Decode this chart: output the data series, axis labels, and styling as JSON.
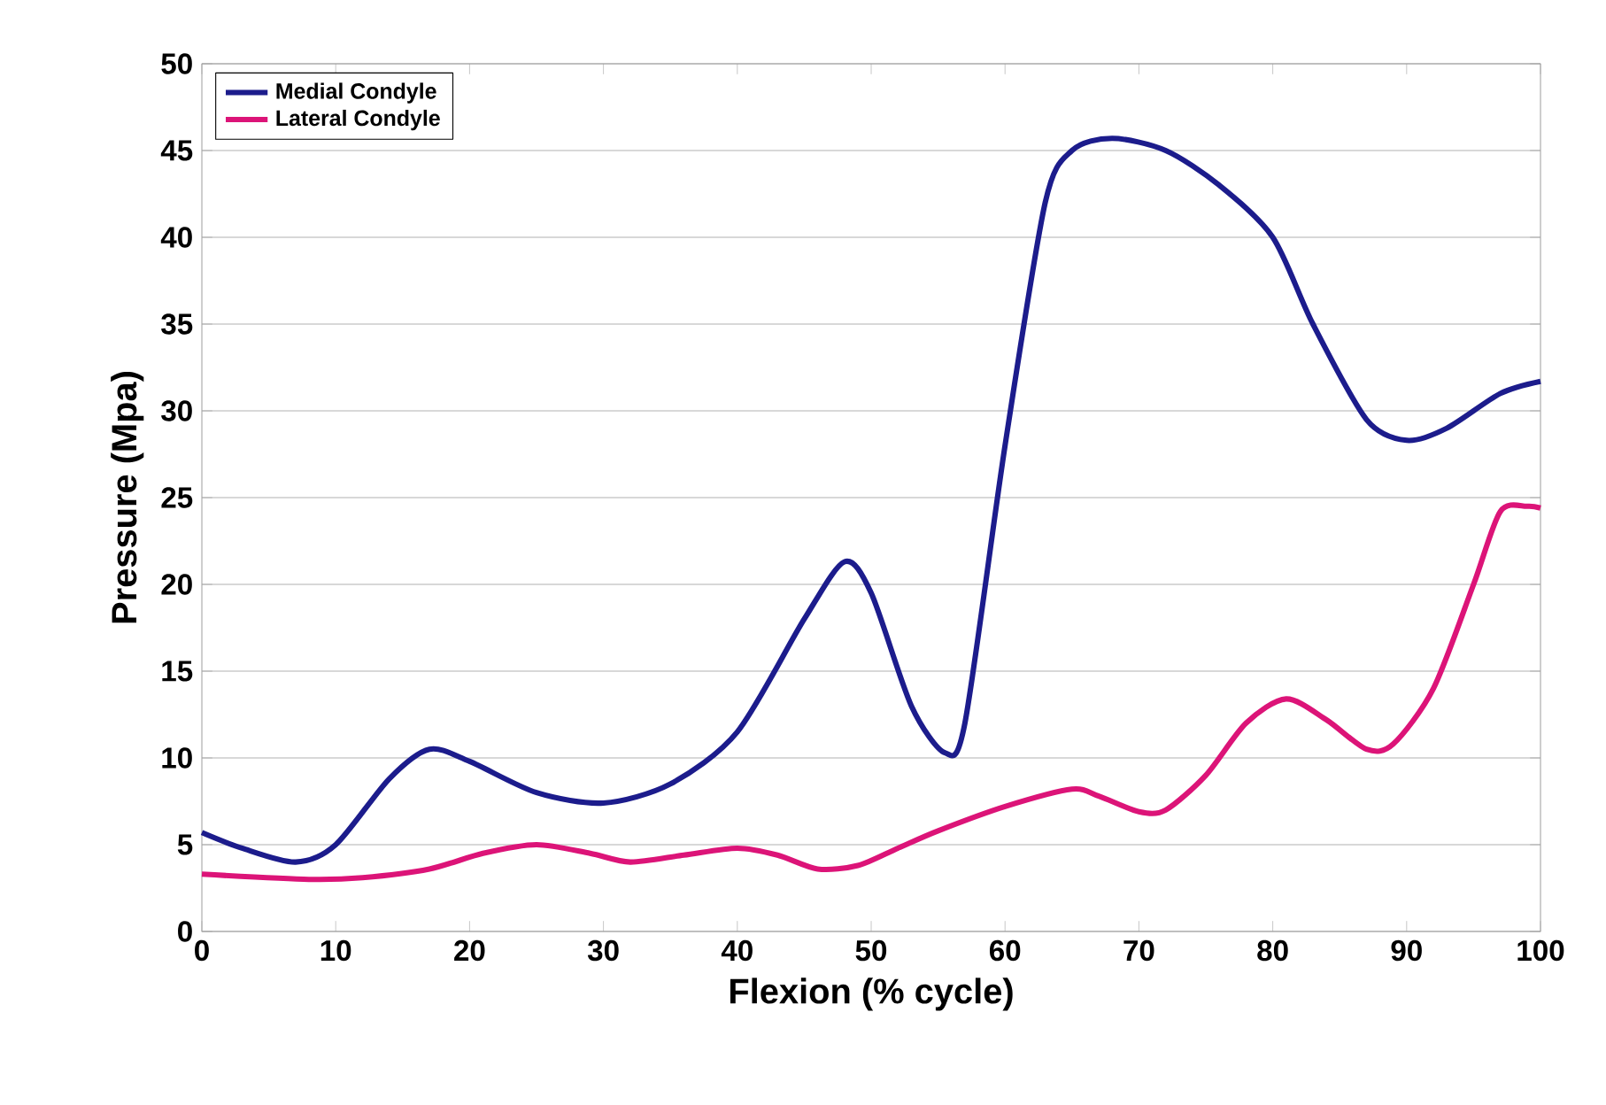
{
  "chart_data": {
    "type": "line",
    "xlabel": "Flexion (% cycle)",
    "ylabel": "Pressure (Mpa)",
    "xlim": [
      0,
      100
    ],
    "xticks": [
      0,
      10,
      20,
      30,
      40,
      50,
      60,
      70,
      80,
      90,
      100
    ],
    "ylim": [
      0,
      50
    ],
    "yticks": [
      0,
      5,
      10,
      15,
      20,
      25,
      30,
      35,
      40,
      45,
      50
    ],
    "grid": "y",
    "legend": "top left",
    "marker": "none",
    "line_style": "solid",
    "series": [
      {
        "name": "Medial Condyle",
        "color": "#1c1c8c",
        "x": [
          0,
          3,
          7,
          10,
          14,
          17,
          20,
          25,
          30,
          35,
          40,
          45,
          48,
          50,
          53,
          55.5,
          57,
          60,
          63,
          65,
          68,
          72,
          76,
          80,
          83,
          87,
          90,
          93,
          97,
          100
        ],
        "values": [
          5.7,
          4.8,
          4.0,
          5.0,
          8.8,
          10.5,
          9.8,
          8.0,
          7.4,
          8.5,
          11.5,
          18.0,
          21.3,
          19.5,
          13.0,
          10.3,
          12.0,
          28.0,
          42.0,
          45.0,
          45.7,
          45.0,
          43.0,
          40.0,
          35.0,
          29.5,
          28.3,
          29.0,
          31.0,
          31.7
        ]
      },
      {
        "name": "Lateral Condyle",
        "color": "#dc1478",
        "x": [
          0,
          8,
          12,
          17,
          21,
          25,
          29,
          32,
          36,
          40,
          43,
          46,
          49,
          52,
          55,
          60,
          65,
          67,
          70,
          72,
          75,
          78,
          81,
          84,
          87,
          89,
          92,
          95,
          97,
          99,
          100
        ],
        "values": [
          3.3,
          3.0,
          3.1,
          3.6,
          4.5,
          5.0,
          4.5,
          4.0,
          4.4,
          4.8,
          4.4,
          3.6,
          3.8,
          4.8,
          5.8,
          7.2,
          8.2,
          7.8,
          6.9,
          7.0,
          9.0,
          12.0,
          13.4,
          12.2,
          10.5,
          10.8,
          14.0,
          20.0,
          24.2,
          24.5,
          24.4
        ]
      }
    ]
  }
}
